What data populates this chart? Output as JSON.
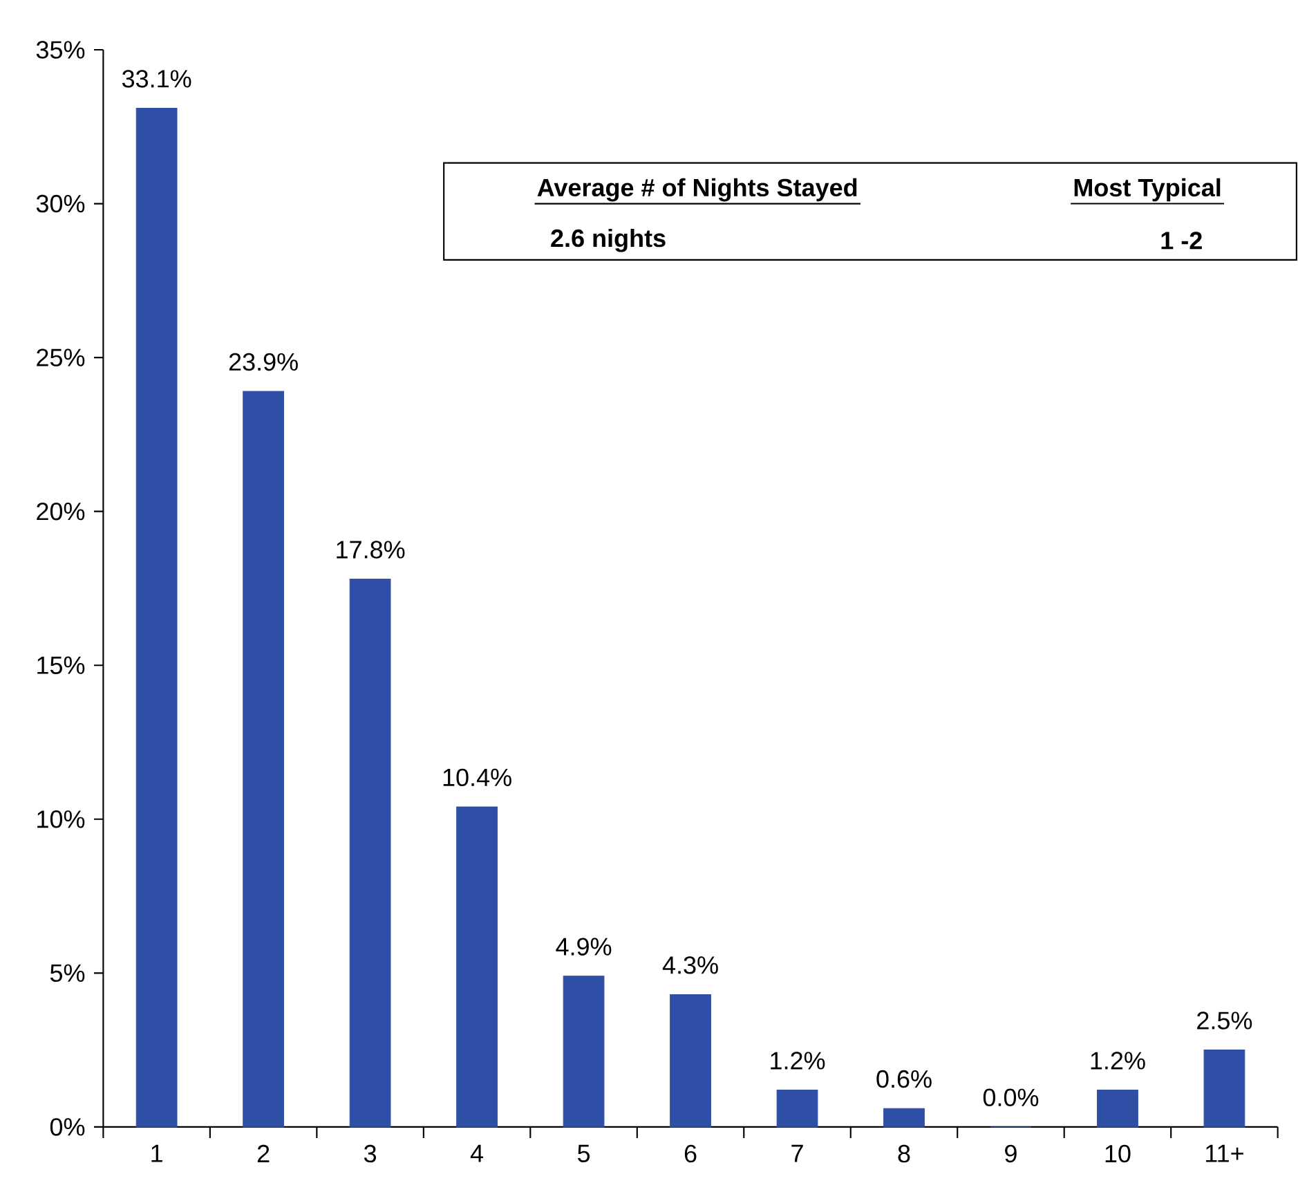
{
  "chart_data": {
    "type": "bar",
    "categories": [
      "1",
      "2",
      "3",
      "4",
      "5",
      "6",
      "7",
      "8",
      "9",
      "10",
      "11+"
    ],
    "values": [
      33.1,
      23.9,
      17.8,
      10.4,
      4.9,
      4.3,
      1.2,
      0.6,
      0.0,
      1.2,
      2.5
    ],
    "value_labels": [
      "33.1%",
      "23.9%",
      "17.8%",
      "10.4%",
      "4.9%",
      "4.3%",
      "1.2%",
      "0.6%",
      "0.0%",
      "1.2%",
      "2.5%"
    ],
    "color": "#2f4fa6",
    "ylim": [
      0,
      35
    ],
    "yticks": [
      {
        "value": 0,
        "label": "0%"
      },
      {
        "value": 5,
        "label": "5%"
      },
      {
        "value": 10,
        "label": "10%"
      },
      {
        "value": 15,
        "label": "15%"
      },
      {
        "value": 20,
        "label": "20%"
      },
      {
        "value": 25,
        "label": "25%"
      },
      {
        "value": 30,
        "label": "30%"
      },
      {
        "value": 35,
        "label": "35%"
      }
    ],
    "grid": false,
    "annotations": [
      "Average # of Nights Stayed",
      "Most Typical",
      "2.6 nights",
      "1 -2"
    ]
  }
}
